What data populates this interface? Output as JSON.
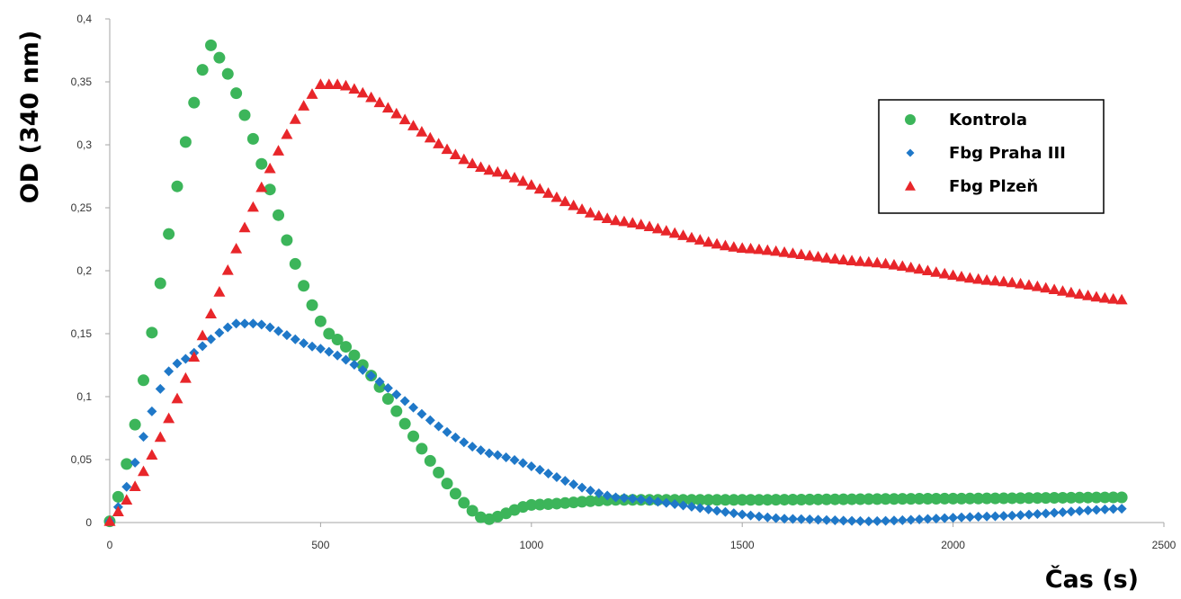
{
  "chart_data": {
    "type": "scatter",
    "title": "",
    "xlabel": "Čas (s)",
    "ylabel": "OD (340 nm)",
    "xlim": [
      0,
      2500
    ],
    "ylim": [
      0,
      0.4
    ],
    "x_ticks": [
      0,
      500,
      1000,
      1500,
      2000,
      2500
    ],
    "x_tick_labels": [
      "0",
      "500",
      "1000",
      "1500",
      "2000",
      "2500"
    ],
    "y_ticks": [
      0,
      0.05,
      0.1,
      0.15,
      0.2,
      0.25,
      0.3,
      0.35,
      0.4
    ],
    "y_tick_labels": [
      "0",
      "0,05",
      "0,1",
      "0,15",
      "0,2",
      "0,25",
      "0,3",
      "0,35",
      "0,4"
    ],
    "grid": false,
    "legend_position": "top-right",
    "series": [
      {
        "name": "Kontrola",
        "marker": "circle",
        "color": "#3cb55a",
        "points": [
          [
            0,
            0.001
          ],
          [
            240,
            0.379
          ],
          [
            520,
            0.15
          ],
          [
            890,
            0.002
          ],
          [
            1000,
            0.014
          ],
          [
            1200,
            0.018
          ],
          [
            1500,
            0.018
          ],
          [
            2000,
            0.019
          ],
          [
            2400,
            0.02
          ]
        ]
      },
      {
        "name": "Fbg Praha III",
        "marker": "diamond",
        "color": "#1f78c8",
        "points": [
          [
            0,
            0.001
          ],
          [
            150,
            0.125
          ],
          [
            300,
            0.158
          ],
          [
            350,
            0.158
          ],
          [
            500,
            0.138
          ],
          [
            900,
            0.055
          ],
          [
            1200,
            0.02
          ],
          [
            1600,
            0.003
          ],
          [
            1800,
            0.001
          ],
          [
            2100,
            0.005
          ],
          [
            2400,
            0.011
          ]
        ]
      },
      {
        "name": "Fbg Plzeň",
        "marker": "triangle",
        "color": "#e8262a",
        "points": [
          [
            0,
            0.001
          ],
          [
            500,
            0.348
          ],
          [
            550,
            0.348
          ],
          [
            900,
            0.28
          ],
          [
            1200,
            0.24
          ],
          [
            1500,
            0.218
          ],
          [
            1800,
            0.207
          ],
          [
            2100,
            0.192
          ],
          [
            2400,
            0.177
          ]
        ]
      }
    ]
  }
}
